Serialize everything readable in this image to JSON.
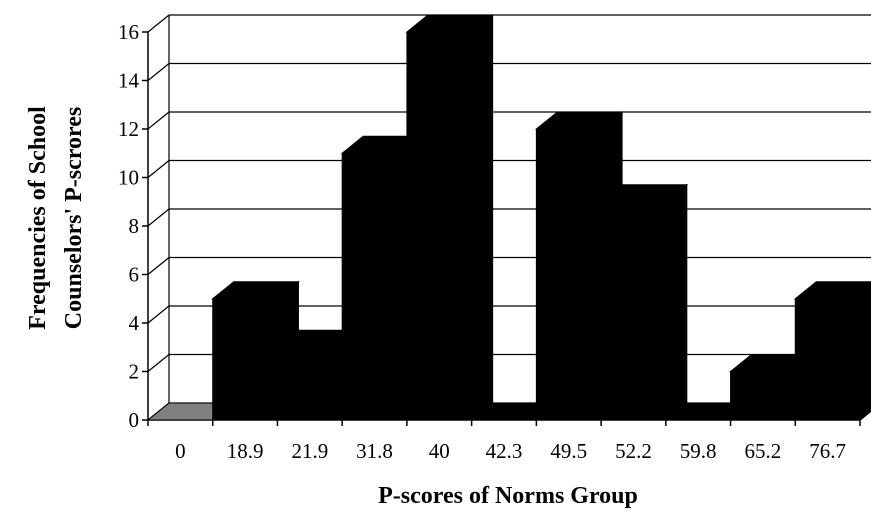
{
  "chart_data": {
    "type": "bar",
    "style": "3d-histogram",
    "categories": [
      "0",
      "18.9",
      "21.9",
      "31.8",
      "40",
      "42.3",
      "49.5",
      "52.2",
      "59.8",
      "65.2",
      "76.7"
    ],
    "values": [
      0,
      5,
      3,
      11,
      16,
      0,
      12,
      9,
      0,
      2,
      5
    ],
    "xlabel": "P-scores of Norms Group",
    "ylabel_lines": [
      "Frequencies of School",
      "Counselors' P-scrores"
    ],
    "ylim": [
      0,
      16
    ],
    "yticks": [
      0,
      2,
      4,
      6,
      8,
      10,
      12,
      14,
      16
    ],
    "grid": true,
    "legend": "none",
    "colors": {
      "bar": "#000000",
      "zero_bar": "#808080",
      "grid": "#000000",
      "background": "#ffffff"
    }
  }
}
